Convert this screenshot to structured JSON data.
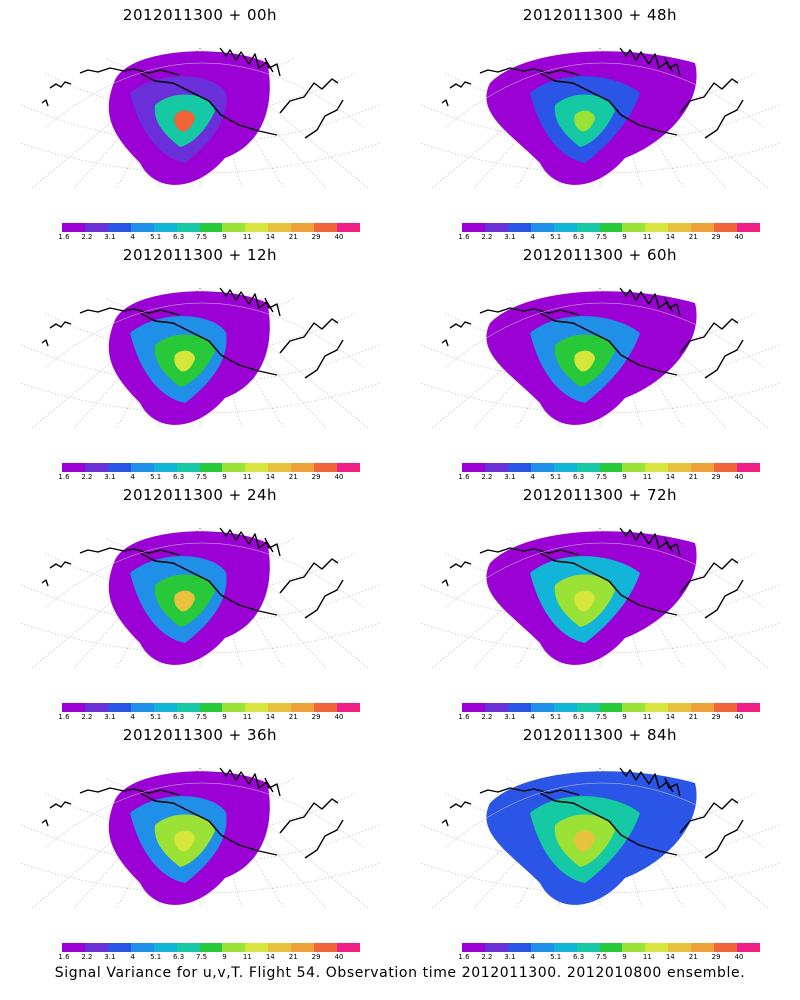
{
  "panels": [
    {
      "title": "2012011300 + 00h"
    },
    {
      "title": "2012011300 + 48h"
    },
    {
      "title": "2012011300 + 12h"
    },
    {
      "title": "2012011300 + 60h"
    },
    {
      "title": "2012011300 + 24h"
    },
    {
      "title": "2012011300 + 72h"
    },
    {
      "title": "2012011300 + 36h"
    },
    {
      "title": "2012011300 + 84h"
    }
  ],
  "colorbar": {
    "ticks": [
      "1.6",
      "2.2",
      "3.1",
      "4",
      "5.1",
      "6.3",
      "7.5",
      "9",
      "11",
      "14",
      "21",
      "29",
      "40"
    ],
    "colors": [
      "#9b00d4",
      "#6a2fd8",
      "#2a55e6",
      "#1f8fe8",
      "#12b4d8",
      "#14c9a4",
      "#27c93a",
      "#9be236",
      "#d7e63a",
      "#e8c23e",
      "#f0a13b",
      "#f0653a",
      "#f01f86"
    ]
  },
  "caption": "Signal Variance for u,v,T. Flight 54. Observation time 2012011300. 2012010800 ensemble."
}
